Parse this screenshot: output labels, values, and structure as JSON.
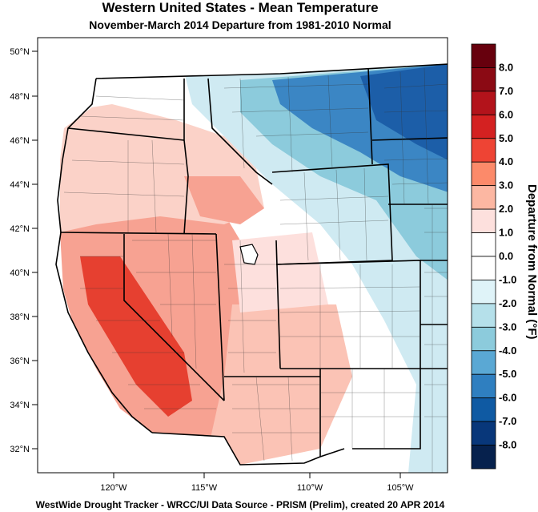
{
  "title": "Western United States - Mean Temperature",
  "subtitle": "November-March 2014  Departure from 1981-2010 Normal",
  "footer": "WestWide Drought Tracker - WRCC/UI  Data Source - PRISM (Prelim), created 20 APR 2014",
  "map": {
    "lat_labels": [
      "50°N",
      "48°N",
      "46°N",
      "44°N",
      "42°N",
      "40°N",
      "38°N",
      "36°N",
      "34°N",
      "32°N"
    ],
    "lon_labels": [
      "120°W",
      "115°W",
      "110°W",
      "105°W"
    ]
  },
  "colorbar": {
    "title": "Departure from Normal (°F)",
    "labels": [
      "8.0",
      "7.0",
      "6.0",
      "5.0",
      "4.0",
      "3.0",
      "2.0",
      "1.0",
      "0.0",
      "-1.0",
      "-2.0",
      "-3.0",
      "-4.0",
      "-5.0",
      "-6.0",
      "-7.0",
      "-8.0"
    ],
    "colors": [
      "#67000d",
      "#8b0a14",
      "#b3131b",
      "#d42121",
      "#ee4434",
      "#fc8a6a",
      "#fcb7a2",
      "#fde0dd",
      "#ffffff",
      "#ffffff",
      "#dff3f8",
      "#b5e0ea",
      "#8ccbdc",
      "#5aa8d4",
      "#2f7fc0",
      "#0f5aa3",
      "#08377a",
      "#06214d"
    ]
  },
  "regions_colors": {
    "warm_strong": "#e64030",
    "warm": "#f7a292",
    "warm_light": "#fbd2c8",
    "neutral": "#ffffff",
    "cool_light": "#cfeaf2",
    "cool": "#8ccbdc",
    "cool_strong": "#3b86c4",
    "cold": "#1c5ea8"
  }
}
